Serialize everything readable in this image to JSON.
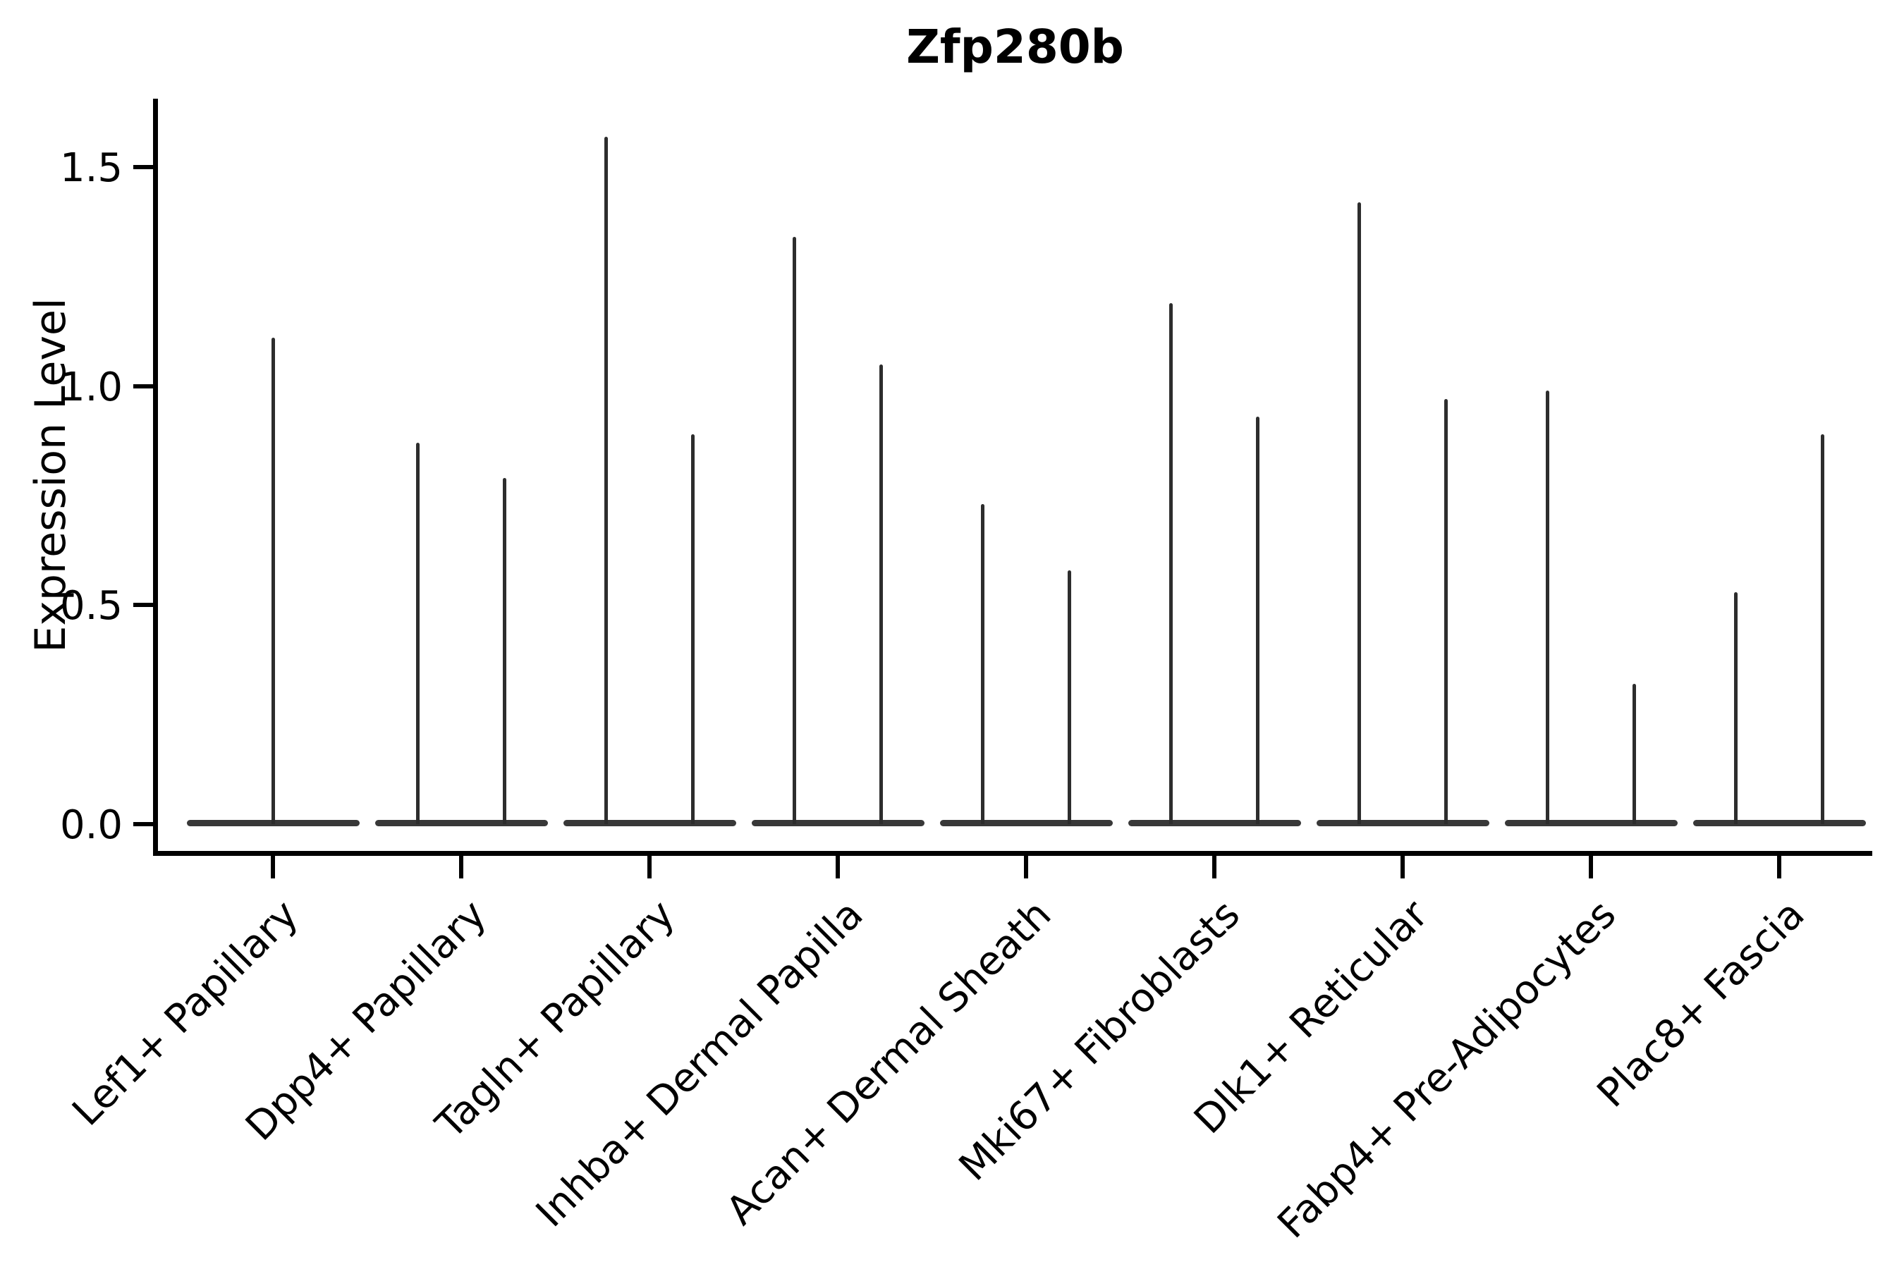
{
  "chart_data": {
    "type": "violin",
    "title": "Zfp280b",
    "xlabel": "",
    "ylabel": "Expression Level",
    "ylim": [
      -0.06,
      1.66
    ],
    "grid": false,
    "legend": "none",
    "ytick_values": [
      0.0,
      0.5,
      1.0,
      1.5
    ],
    "ytick_labels": [
      "0.0",
      "0.5",
      "1.0",
      "1.5"
    ],
    "categories": [
      "Lef1+ Papillary",
      "Dpp4+ Papillary",
      "Tagln+ Papillary",
      "Inhba+ Dermal Papilla",
      "Acan+ Dermal Sheath",
      "Mki67+ Fibroblasts",
      "Dlk1+ Reticular",
      "Fabp4+ Pre-Adipocytes",
      "Plac8+ Fascia"
    ],
    "violins": [
      {
        "category": "Lef1+ Papillary",
        "baseline_value": 0,
        "spikes": [
          {
            "offset": 0.0,
            "max": 1.11
          }
        ]
      },
      {
        "category": "Dpp4+ Papillary",
        "baseline_value": 0,
        "spikes": [
          {
            "offset": -0.23,
            "max": 0.87
          },
          {
            "offset": 0.23,
            "max": 0.79
          }
        ]
      },
      {
        "category": "Tagln+ Papillary",
        "baseline_value": 0,
        "spikes": [
          {
            "offset": -0.23,
            "max": 1.57
          },
          {
            "offset": 0.23,
            "max": 0.89
          }
        ]
      },
      {
        "category": "Inhba+ Dermal Papilla",
        "baseline_value": 0,
        "spikes": [
          {
            "offset": -0.23,
            "max": 1.34
          },
          {
            "offset": 0.23,
            "max": 1.05
          }
        ]
      },
      {
        "category": "Acan+ Dermal Sheath",
        "baseline_value": 0,
        "spikes": [
          {
            "offset": -0.23,
            "max": 0.73
          },
          {
            "offset": 0.23,
            "max": 0.58
          }
        ]
      },
      {
        "category": "Mki67+ Fibroblasts",
        "baseline_value": 0,
        "spikes": [
          {
            "offset": -0.23,
            "max": 1.19
          },
          {
            "offset": 0.23,
            "max": 0.93
          }
        ]
      },
      {
        "category": "Dlk1+ Reticular",
        "baseline_value": 0,
        "spikes": [
          {
            "offset": -0.23,
            "max": 1.42
          },
          {
            "offset": 0.23,
            "max": 0.97
          }
        ]
      },
      {
        "category": "Fabp4+ Pre-Adipocytes",
        "baseline_value": 0,
        "spikes": [
          {
            "offset": -0.23,
            "max": 0.99
          },
          {
            "offset": 0.23,
            "max": 0.32
          }
        ]
      },
      {
        "category": "Plac8+ Fascia",
        "baseline_value": 0,
        "spikes": [
          {
            "offset": -0.23,
            "max": 0.53
          },
          {
            "offset": 0.23,
            "max": 0.89
          }
        ]
      }
    ],
    "colors": {
      "background": "#ffffff",
      "spine": "#000000",
      "violin_base": "#383838",
      "violin_needle": "#2d2d2d",
      "text": "#000000"
    }
  }
}
